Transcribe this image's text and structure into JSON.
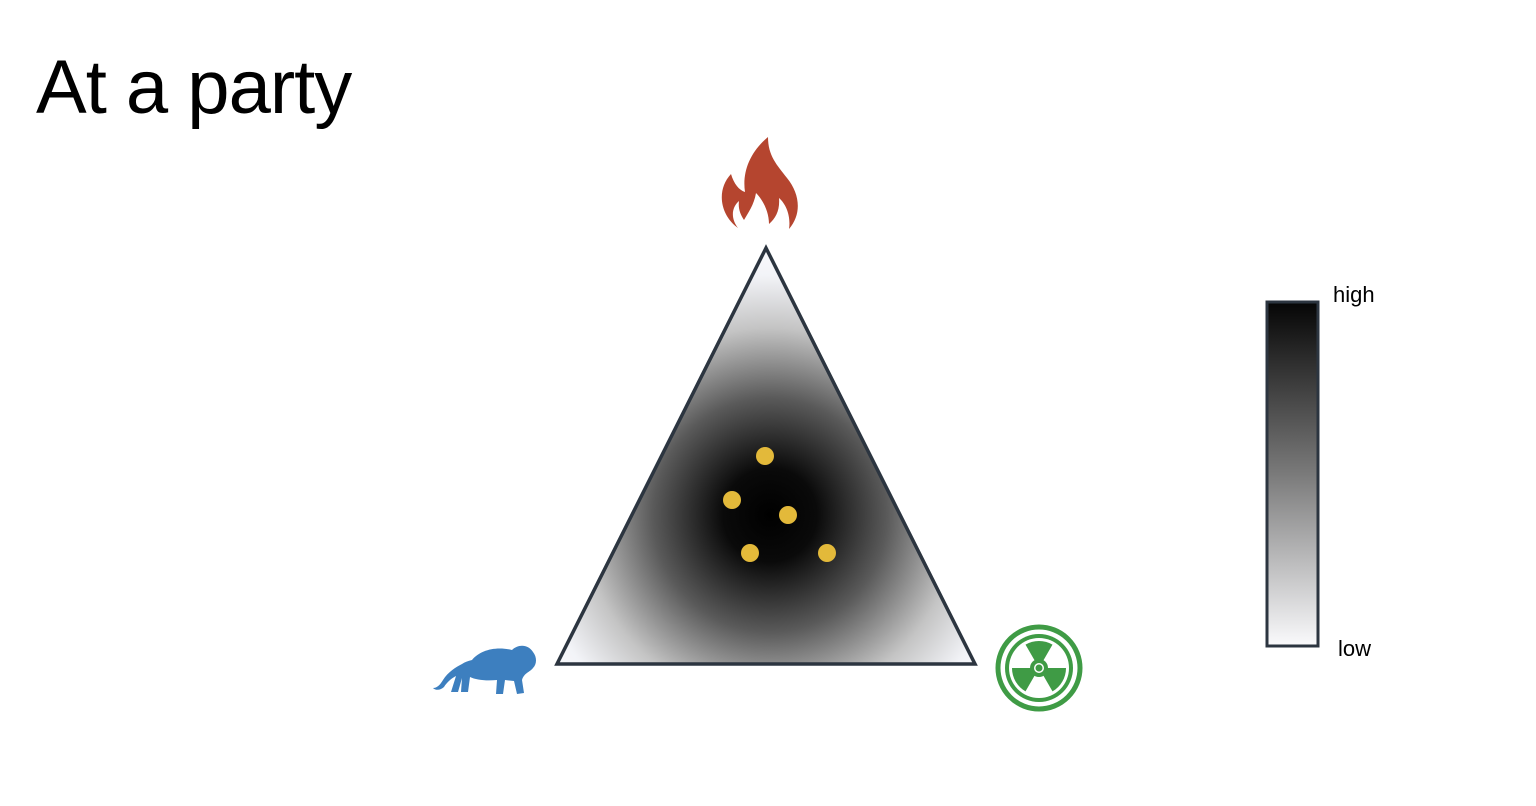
{
  "slide": {
    "title": "At a party"
  },
  "diagram": {
    "vertices": {
      "top": {
        "icon": "fire-icon",
        "color": "#b5452f"
      },
      "bottom_left": {
        "icon": "lion-icon",
        "color": "#3d7fbf"
      },
      "bottom_right": {
        "icon": "radiation-icon",
        "color": "#3f9b45"
      }
    },
    "points_color": "#e3b93a",
    "points_count": 5
  },
  "scale": {
    "high_label": "high",
    "low_label": "low"
  }
}
